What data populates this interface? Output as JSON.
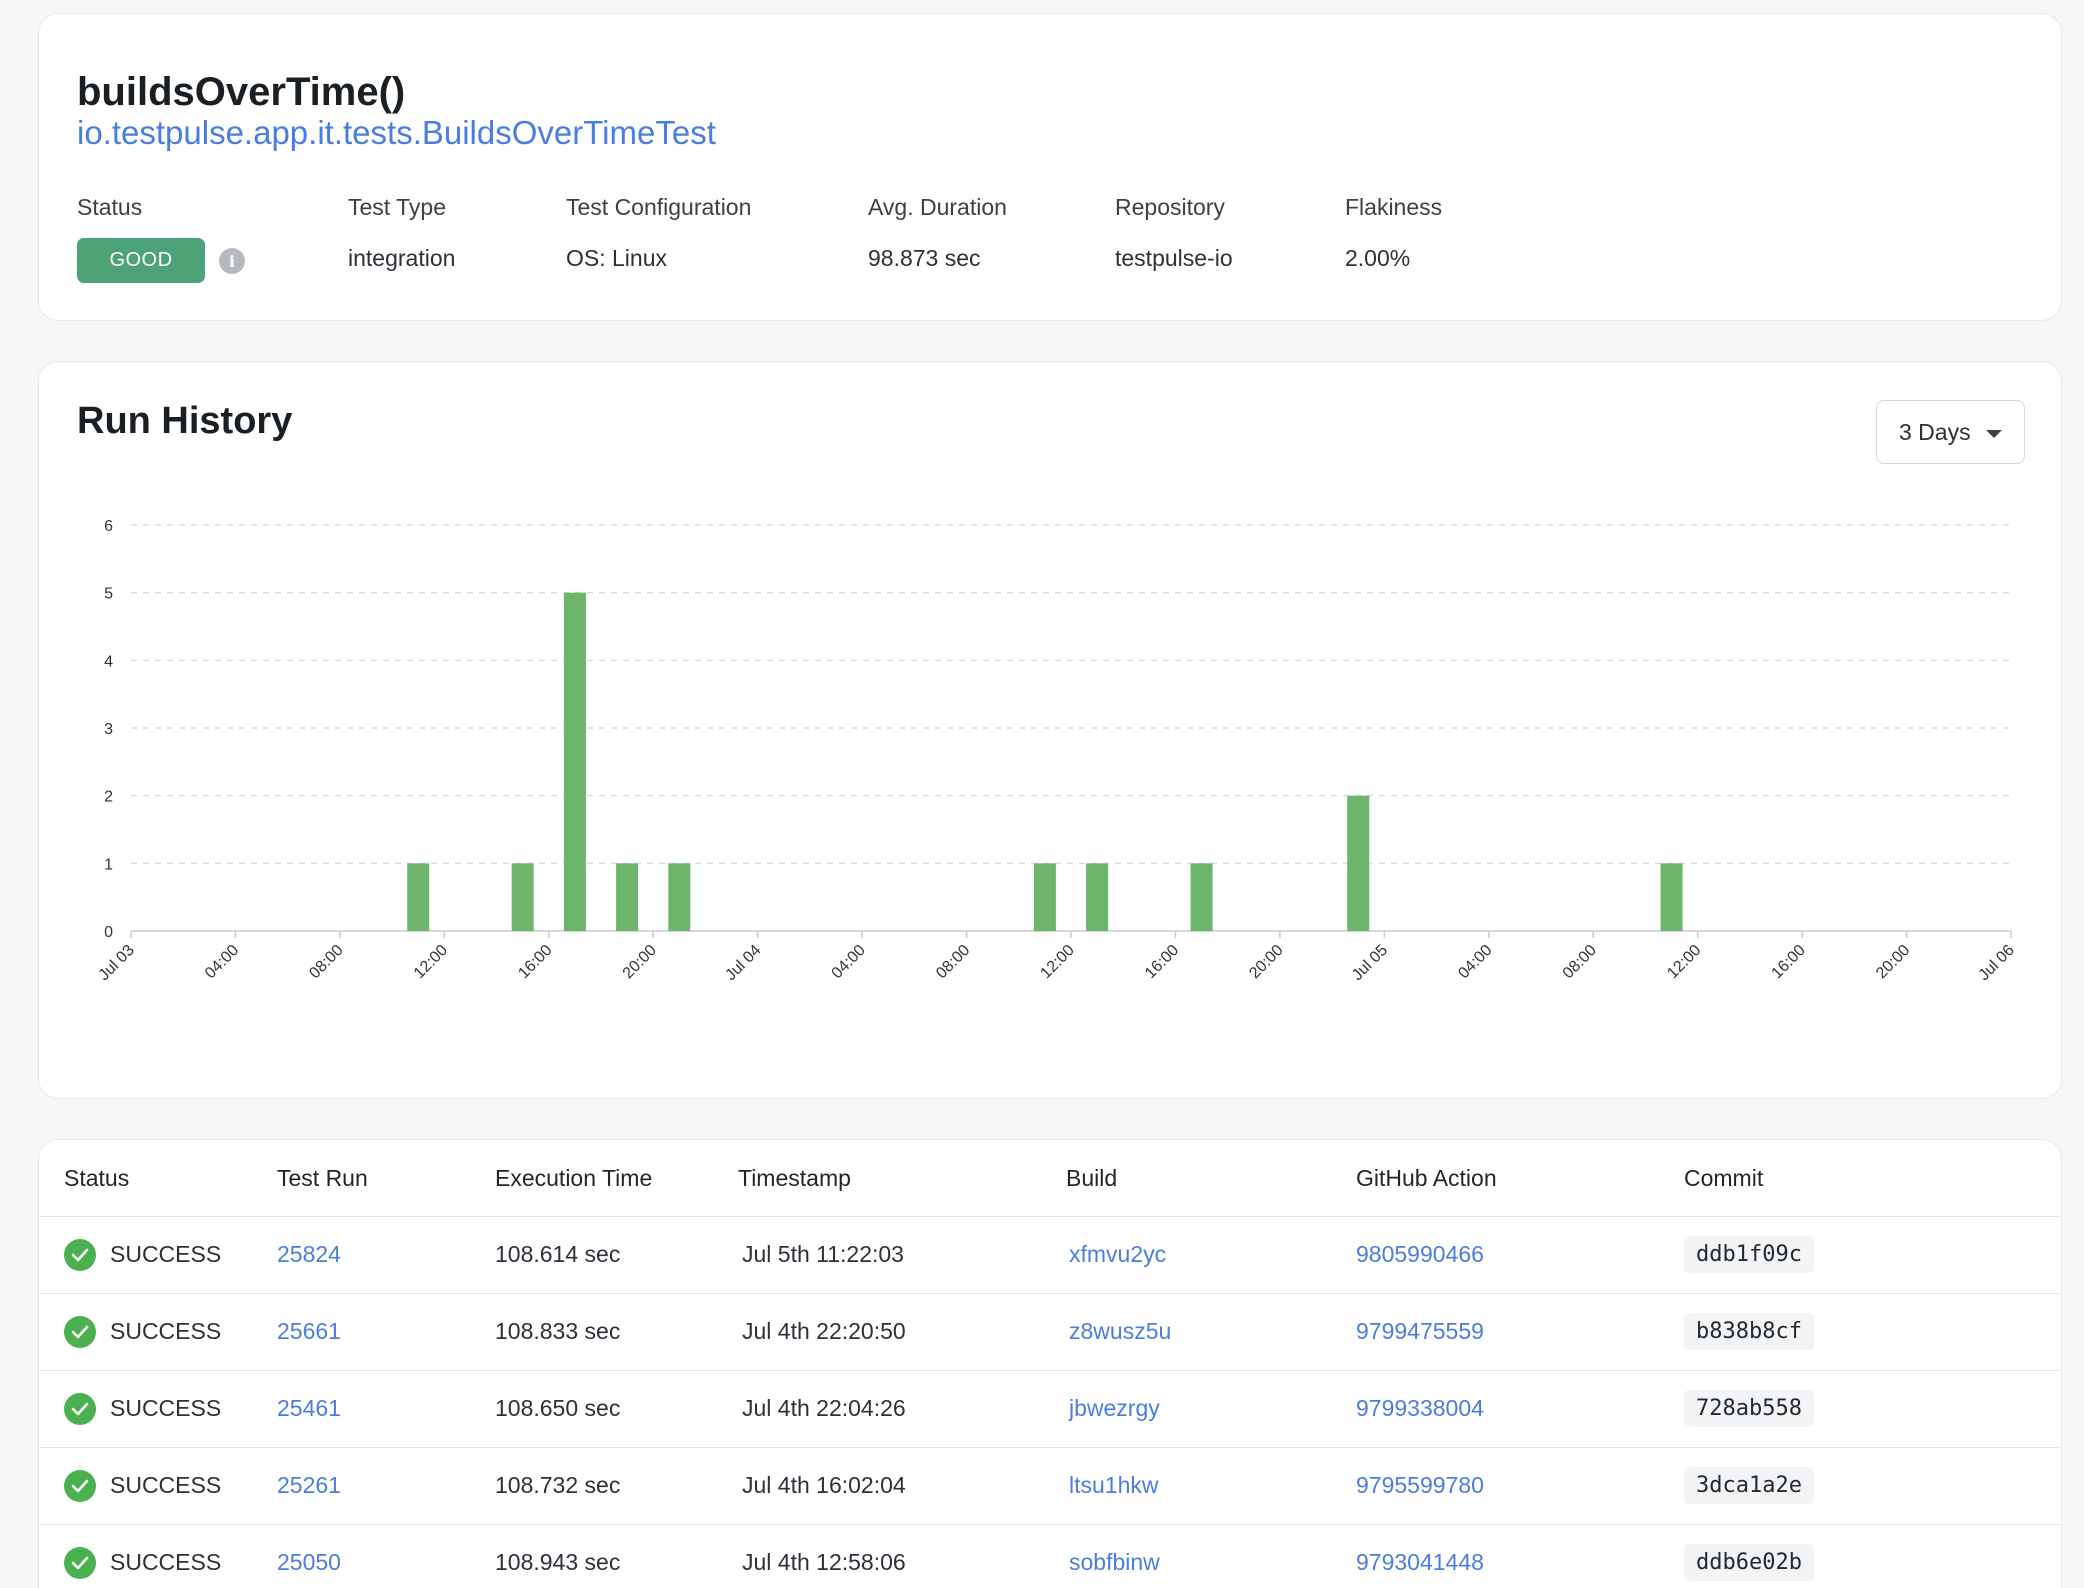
{
  "test": {
    "name": "buildsOverTime()",
    "class_name": "io.testpulse.app.it.tests.BuildsOverTimeTest"
  },
  "meta": {
    "status_label": "Status",
    "status_value": "GOOD",
    "status_color": "#4ea278",
    "info_icon": "info-icon",
    "test_type_label": "Test Type",
    "test_type_value": "integration",
    "config_label": "Test Configuration",
    "config_value": "OS: Linux",
    "duration_label": "Avg. Duration",
    "duration_value": "98.873 sec",
    "repo_label": "Repository",
    "repo_value": "testpulse-io",
    "flakiness_label": "Flakiness",
    "flakiness_value": "2.00%"
  },
  "run_history": {
    "title": "Run History",
    "range_selected": "3 Days"
  },
  "chart_data": {
    "type": "bar",
    "title": "",
    "xlabel": "",
    "ylabel": "",
    "ylim": [
      0,
      6
    ],
    "yticks": [
      "0",
      "1",
      "2",
      "3",
      "4",
      "5",
      "6"
    ],
    "xticks": [
      "Jul 03",
      "04:00",
      "08:00",
      "12:00",
      "16:00",
      "20:00",
      "Jul 04",
      "04:00",
      "08:00",
      "12:00",
      "16:00",
      "20:00",
      "Jul 05",
      "04:00",
      "08:00",
      "12:00",
      "16:00",
      "20:00",
      "Jul 06"
    ],
    "grid": true,
    "bar_color": "#6cb56b",
    "x": [
      "Jul 03 11:00",
      "Jul 03 15:00",
      "Jul 03 17:00",
      "Jul 03 19:00",
      "Jul 03 21:00",
      "Jul 04 11:00",
      "Jul 04 13:00",
      "Jul 04 17:00",
      "Jul 04 23:00",
      "Jul 05 11:00"
    ],
    "values": [
      1,
      1,
      5,
      1,
      1,
      1,
      1,
      1,
      2,
      1
    ]
  },
  "table": {
    "columns": [
      "Status",
      "Test Run",
      "Execution Time",
      "Timestamp",
      "Build",
      "GitHub Action",
      "Commit"
    ],
    "rows": [
      {
        "status": "SUCCESS",
        "run": "25824",
        "exec": "108.614 sec",
        "ts": "Jul 5th 11:22:03",
        "build": "xfmvu2yc",
        "action": "9805990466",
        "commit": "ddb1f09c"
      },
      {
        "status": "SUCCESS",
        "run": "25661",
        "exec": "108.833 sec",
        "ts": "Jul 4th 22:20:50",
        "build": "z8wusz5u",
        "action": "9799475559",
        "commit": "b838b8cf"
      },
      {
        "status": "SUCCESS",
        "run": "25461",
        "exec": "108.650 sec",
        "ts": "Jul 4th 22:04:26",
        "build": "jbwezrgy",
        "action": "9799338004",
        "commit": "728ab558"
      },
      {
        "status": "SUCCESS",
        "run": "25261",
        "exec": "108.732 sec",
        "ts": "Jul 4th 16:02:04",
        "build": "ltsu1hkw",
        "action": "9795599780",
        "commit": "3dca1a2e"
      },
      {
        "status": "SUCCESS",
        "run": "25050",
        "exec": "108.943 sec",
        "ts": "Jul 4th 12:58:06",
        "build": "sobfbinw",
        "action": "9793041448",
        "commit": "ddb6e02b"
      }
    ]
  }
}
